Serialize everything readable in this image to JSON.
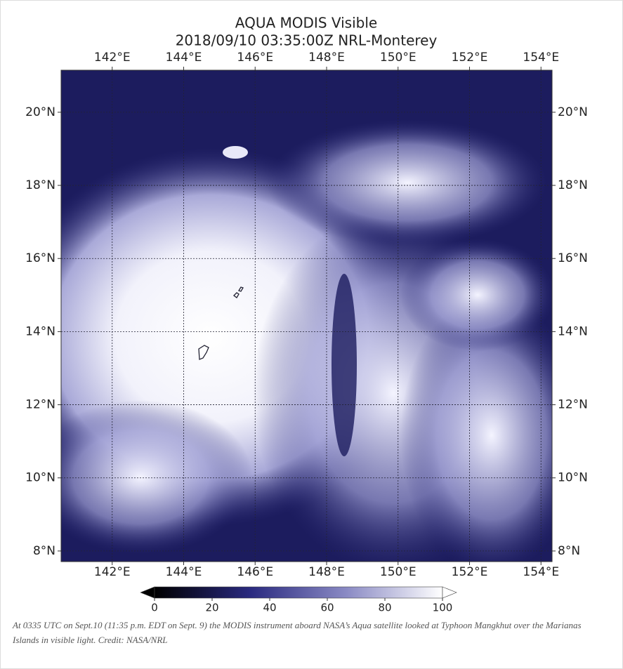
{
  "chart_data": {
    "type": "map",
    "title": "AQUA MODIS Visible",
    "subtitle": "2018/09/10 03:35:00Z NRL-Monterey",
    "xlim": [
      140.57,
      154.31
    ],
    "ylim": [
      7.71,
      21.15
    ],
    "xticks": [
      {
        "value": 142,
        "label": "142°E"
      },
      {
        "value": 144,
        "label": "144°E"
      },
      {
        "value": 146,
        "label": "146°E"
      },
      {
        "value": 148,
        "label": "148°E"
      },
      {
        "value": 150,
        "label": "150°E"
      },
      {
        "value": 152,
        "label": "152°E"
      },
      {
        "value": 154,
        "label": "154°E"
      }
    ],
    "yticks": [
      {
        "value": 8,
        "label": "8°N"
      },
      {
        "value": 10,
        "label": "10°N"
      },
      {
        "value": 12,
        "label": "12°N"
      },
      {
        "value": 14,
        "label": "14°N"
      },
      {
        "value": 16,
        "label": "16°N"
      },
      {
        "value": 18,
        "label": "18°N"
      },
      {
        "value": 20,
        "label": "20°N"
      }
    ],
    "grid": true,
    "colorbar": {
      "lim": [
        0,
        100
      ],
      "ticks": [
        0,
        20,
        40,
        60,
        80,
        100
      ],
      "colors": [
        "#000000",
        "#2a2a80",
        "#8a8ac4",
        "#ffffff"
      ]
    },
    "caption": "At 0335 UTC on Sept.10 (11:35 p.m. EDT on Sept. 9) the MODIS instrument aboard NASA’s Aqua satellite looked at Typhoon Mangkhut over the Marianas Islands in visible light. Credit: NASA/NRL"
  }
}
